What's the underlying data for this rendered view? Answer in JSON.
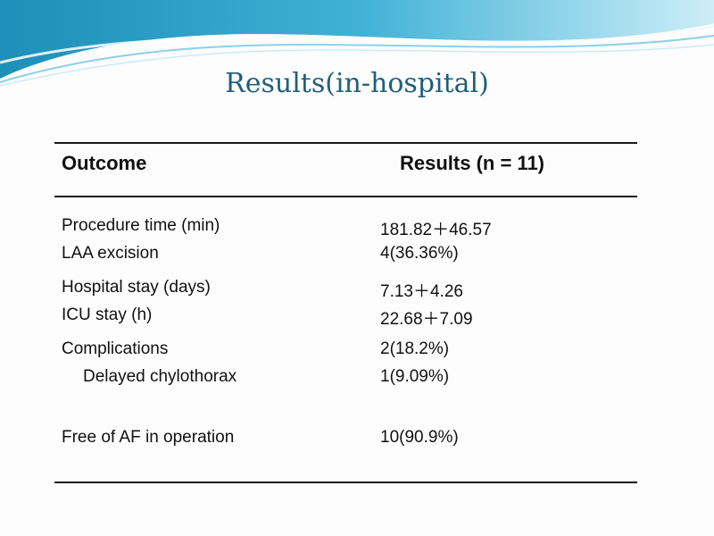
{
  "title": "Results(in-hospital)",
  "header": {
    "outcome": "Outcome",
    "results": "Results (n = 11)"
  },
  "rows": [
    {
      "label": "Procedure time (min)",
      "value": "181.82＋46.57"
    },
    {
      "label": "LAA excision",
      "value": "4(36.36%)"
    },
    {
      "label": "Hospital stay (days)",
      "value": "7.13＋4.26"
    },
    {
      "label": "ICU stay (h)",
      "value": "22.68＋7.09"
    },
    {
      "label": "Complications",
      "value": "2(18.2%)"
    },
    {
      "label": "Delayed chylothorax",
      "value": "1(9.09%)"
    },
    {
      "label": "Free of AF in operation",
      "value": "10(90.9%)"
    }
  ],
  "colors": {
    "title": "#1f5f7a",
    "wave_dark": "#1d8fb8",
    "wave_light": "#a9dcf0"
  }
}
